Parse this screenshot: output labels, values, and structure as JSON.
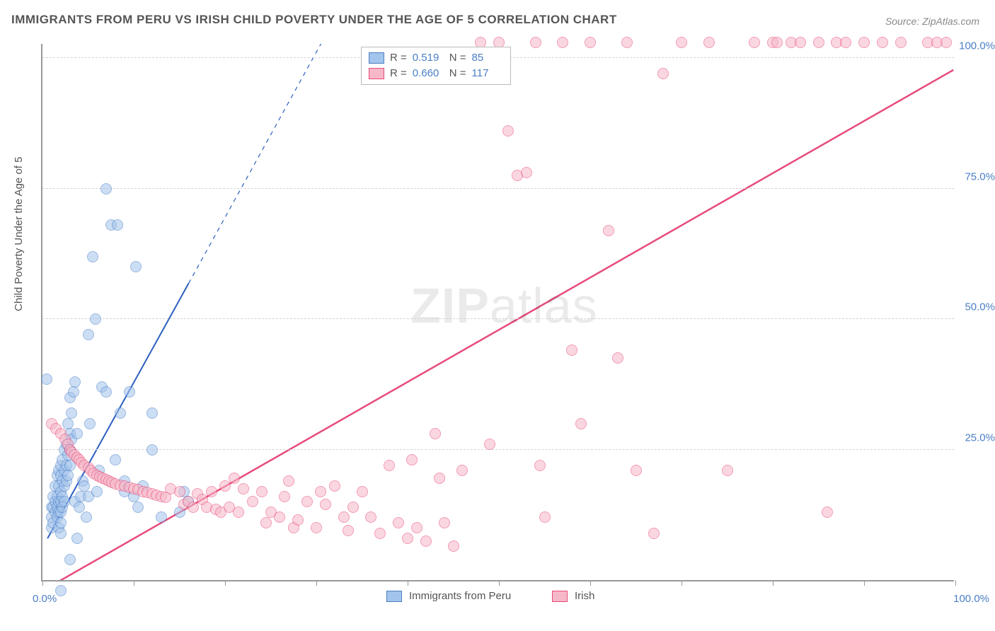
{
  "title": "IMMIGRANTS FROM PERU VS IRISH CHILD POVERTY UNDER THE AGE OF 5 CORRELATION CHART",
  "source_label": "Source: ",
  "source_name": "ZipAtlas.com",
  "y_axis_title": "Child Poverty Under the Age of 5",
  "chart": {
    "type": "scatter",
    "xlim": [
      0,
      100
    ],
    "ylim": [
      0,
      103
    ],
    "x_ticks": [
      0,
      10,
      20,
      30,
      40,
      50,
      60,
      70,
      80,
      90,
      100
    ],
    "y_gridlines": [
      25,
      50,
      75,
      100
    ],
    "y_tick_labels": [
      "25.0%",
      "50.0%",
      "75.0%",
      "100.0%"
    ],
    "x_label_min": "0.0%",
    "x_label_max": "100.0%",
    "background_color": "#ffffff",
    "grid_color": "#d4d4d4",
    "axis_color": "#999999",
    "tick_label_color": "#4a7fc5",
    "point_radius": 8
  },
  "series": [
    {
      "name": "Immigrants from Peru",
      "fill_color": "#a3c4ec",
      "fill_opacity": 0.55,
      "stroke_color": "#4a7fc5",
      "R": "0.519",
      "N": "85",
      "trend": {
        "x1": 0.5,
        "y1": 8,
        "x2": 16,
        "y2": 57,
        "dash_to_x": 34,
        "dash_to_y": 114,
        "color": "#2b5fbf",
        "width": 2
      },
      "points": [
        [
          0.5,
          38.5
        ],
        [
          1,
          14
        ],
        [
          1,
          12
        ],
        [
          1,
          10
        ],
        [
          1.2,
          16
        ],
        [
          1.2,
          14
        ],
        [
          1.2,
          11
        ],
        [
          1.4,
          18
        ],
        [
          1.4,
          15
        ],
        [
          1.4,
          13
        ],
        [
          1.6,
          20
        ],
        [
          1.6,
          16
        ],
        [
          1.6,
          14
        ],
        [
          1.6,
          12
        ],
        [
          1.8,
          21
        ],
        [
          1.8,
          18
        ],
        [
          1.8,
          15
        ],
        [
          1.8,
          13
        ],
        [
          1.8,
          10
        ],
        [
          2,
          22
        ],
        [
          2,
          20
        ],
        [
          2,
          17
        ],
        [
          2,
          15
        ],
        [
          2,
          13
        ],
        [
          2,
          11
        ],
        [
          2,
          9
        ],
        [
          2.2,
          23
        ],
        [
          2.2,
          19
        ],
        [
          2.2,
          16
        ],
        [
          2.2,
          14
        ],
        [
          2.4,
          25
        ],
        [
          2.4,
          21
        ],
        [
          2.4,
          18
        ],
        [
          2.4,
          15
        ],
        [
          2.6,
          26
        ],
        [
          2.6,
          22
        ],
        [
          2.6,
          19
        ],
        [
          2.8,
          30
        ],
        [
          2.8,
          24
        ],
        [
          2.8,
          20
        ],
        [
          3,
          35
        ],
        [
          3,
          28
        ],
        [
          3,
          25
        ],
        [
          3,
          22
        ],
        [
          3.2,
          32
        ],
        [
          3.2,
          27
        ],
        [
          3.4,
          36
        ],
        [
          3.6,
          38
        ],
        [
          3.6,
          15
        ],
        [
          3.8,
          28
        ],
        [
          4,
          14
        ],
        [
          4.2,
          16
        ],
        [
          4.4,
          19
        ],
        [
          4.6,
          18
        ],
        [
          4.8,
          12
        ],
        [
          5,
          47
        ],
        [
          5,
          16
        ],
        [
          5.2,
          30
        ],
        [
          5.5,
          62
        ],
        [
          5.8,
          50
        ],
        [
          6,
          17
        ],
        [
          6.2,
          21
        ],
        [
          6.5,
          37
        ],
        [
          7,
          75
        ],
        [
          7,
          36
        ],
        [
          7.5,
          68
        ],
        [
          8,
          23
        ],
        [
          8.2,
          68
        ],
        [
          8.5,
          32
        ],
        [
          9,
          17
        ],
        [
          9,
          19
        ],
        [
          9.5,
          36
        ],
        [
          10,
          16
        ],
        [
          10.2,
          60
        ],
        [
          10.5,
          14
        ],
        [
          11,
          18
        ],
        [
          12,
          32
        ],
        [
          12,
          25
        ],
        [
          13,
          12
        ],
        [
          15,
          13
        ],
        [
          2,
          -2
        ],
        [
          3,
          4
        ],
        [
          3.8,
          8
        ],
        [
          15.5,
          17
        ],
        [
          16,
          15
        ]
      ]
    },
    {
      "name": "Irish",
      "fill_color": "#f6b8c8",
      "fill_opacity": 0.55,
      "stroke_color": "#e84a7a",
      "R": "0.660",
      "N": "117",
      "trend": {
        "x1": 1,
        "y1": -1,
        "x2": 100,
        "y2": 98,
        "color": "#e84a7a",
        "width": 2.5
      },
      "points": [
        [
          1,
          30
        ],
        [
          1.5,
          29
        ],
        [
          2,
          28
        ],
        [
          2.5,
          27
        ],
        [
          2.8,
          26
        ],
        [
          3,
          25
        ],
        [
          3.2,
          24.5
        ],
        [
          3.5,
          24
        ],
        [
          3.8,
          23.5
        ],
        [
          4,
          23
        ],
        [
          4.3,
          22.5
        ],
        [
          4.6,
          22
        ],
        [
          5,
          21.5
        ],
        [
          5.3,
          21
        ],
        [
          5.6,
          20.5
        ],
        [
          6,
          20
        ],
        [
          6.3,
          19.8
        ],
        [
          6.6,
          19.5
        ],
        [
          7,
          19.2
        ],
        [
          7.3,
          19
        ],
        [
          7.6,
          18.7
        ],
        [
          8,
          18.5
        ],
        [
          8.5,
          18.2
        ],
        [
          9,
          18
        ],
        [
          9.5,
          17.8
        ],
        [
          10,
          17.5
        ],
        [
          10.5,
          17.3
        ],
        [
          11,
          17
        ],
        [
          11.5,
          16.8
        ],
        [
          12,
          16.5
        ],
        [
          12.5,
          16.3
        ],
        [
          13,
          16
        ],
        [
          13.5,
          15.8
        ],
        [
          14,
          17.5
        ],
        [
          15,
          17
        ],
        [
          15.5,
          14.5
        ],
        [
          16,
          15
        ],
        [
          16.5,
          14
        ],
        [
          17,
          16.5
        ],
        [
          17.5,
          15.5
        ],
        [
          18,
          14
        ],
        [
          18.5,
          17
        ],
        [
          19,
          13.5
        ],
        [
          19.5,
          13
        ],
        [
          20,
          18
        ],
        [
          20.5,
          14
        ],
        [
          21,
          19.5
        ],
        [
          21.5,
          13
        ],
        [
          22,
          17.5
        ],
        [
          23,
          15
        ],
        [
          24,
          17
        ],
        [
          24.5,
          11
        ],
        [
          25,
          13
        ],
        [
          26,
          12
        ],
        [
          26.5,
          16
        ],
        [
          27,
          19
        ],
        [
          27.5,
          10
        ],
        [
          28,
          11.5
        ],
        [
          29,
          15
        ],
        [
          30,
          10
        ],
        [
          30.5,
          17
        ],
        [
          31,
          14.5
        ],
        [
          32,
          18
        ],
        [
          33,
          12
        ],
        [
          33.5,
          9.5
        ],
        [
          34,
          14
        ],
        [
          35,
          17
        ],
        [
          36,
          12
        ],
        [
          37,
          9
        ],
        [
          38,
          22
        ],
        [
          39,
          11
        ],
        [
          40,
          8
        ],
        [
          40.5,
          23
        ],
        [
          41,
          10
        ],
        [
          42,
          7.5
        ],
        [
          43,
          28
        ],
        [
          43.5,
          19.5
        ],
        [
          44,
          11
        ],
        [
          45,
          6.5
        ],
        [
          46,
          21
        ],
        [
          48,
          103
        ],
        [
          49,
          26
        ],
        [
          50,
          103
        ],
        [
          51,
          86
        ],
        [
          52,
          77.5
        ],
        [
          53,
          78
        ],
        [
          54,
          103
        ],
        [
          54.5,
          22
        ],
        [
          55,
          12
        ],
        [
          57,
          103
        ],
        [
          58,
          44
        ],
        [
          59,
          30
        ],
        [
          60,
          103
        ],
        [
          62,
          67
        ],
        [
          63,
          42.5
        ],
        [
          64,
          103
        ],
        [
          65,
          21
        ],
        [
          67,
          9
        ],
        [
          68,
          97
        ],
        [
          70,
          103
        ],
        [
          73,
          103
        ],
        [
          75,
          21
        ],
        [
          78,
          103
        ],
        [
          80,
          103
        ],
        [
          82,
          103
        ],
        [
          83,
          103
        ],
        [
          85,
          103
        ],
        [
          87,
          103
        ],
        [
          88,
          103
        ],
        [
          90,
          103
        ],
        [
          92,
          103
        ],
        [
          94,
          103
        ],
        [
          97,
          103
        ],
        [
          98,
          103
        ],
        [
          99,
          103
        ],
        [
          80.5,
          103
        ],
        [
          86,
          13
        ]
      ]
    }
  ],
  "legend_top": {
    "R_label": "R =",
    "N_label": "N ="
  },
  "watermark": "ZIPatlas"
}
